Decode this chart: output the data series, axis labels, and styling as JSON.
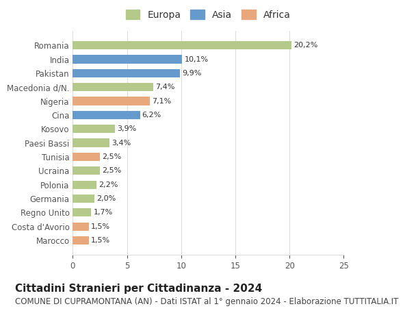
{
  "categories": [
    "Marocco",
    "Costa d'Avorio",
    "Regno Unito",
    "Germania",
    "Polonia",
    "Ucraina",
    "Tunisia",
    "Paesi Bassi",
    "Kosovo",
    "Cina",
    "Nigeria",
    "Macedonia d/N.",
    "Pakistan",
    "India",
    "Romania"
  ],
  "values": [
    1.5,
    1.5,
    1.7,
    2.0,
    2.2,
    2.5,
    2.5,
    3.4,
    3.9,
    6.2,
    7.1,
    7.4,
    9.9,
    10.1,
    20.2
  ],
  "labels": [
    "1,5%",
    "1,5%",
    "1,7%",
    "2,0%",
    "2,2%",
    "2,5%",
    "2,5%",
    "3,4%",
    "3,9%",
    "6,2%",
    "7,1%",
    "7,4%",
    "9,9%",
    "10,1%",
    "20,2%"
  ],
  "continents": [
    "Africa",
    "Africa",
    "Europa",
    "Europa",
    "Europa",
    "Europa",
    "Africa",
    "Europa",
    "Europa",
    "Asia",
    "Africa",
    "Europa",
    "Asia",
    "Asia",
    "Europa"
  ],
  "colors": {
    "Europa": "#b5c98a",
    "Asia": "#6699cc",
    "Africa": "#e8a87c"
  },
  "legend_items": [
    "Europa",
    "Asia",
    "Africa"
  ],
  "title_bold": "Cittadini Stranieri per Cittadinanza - 2024",
  "subtitle": "COMUNE DI CUPRAMONTANA (AN) - Dati ISTAT al 1° gennaio 2024 - Elaborazione TUTTITALIA.IT",
  "xlim": [
    0,
    25
  ],
  "xticks": [
    0,
    5,
    10,
    15,
    20,
    25
  ],
  "background_color": "#ffffff",
  "grid_color": "#dddddd",
  "bar_height": 0.6,
  "title_fontsize": 11,
  "subtitle_fontsize": 8.5,
  "label_fontsize": 8,
  "tick_fontsize": 8.5,
  "legend_fontsize": 10
}
